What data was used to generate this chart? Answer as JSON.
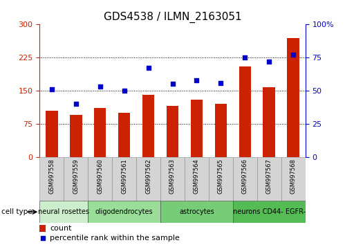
{
  "title": "GDS4538 / ILMN_2163051",
  "samples": [
    "GSM997558",
    "GSM997559",
    "GSM997560",
    "GSM997561",
    "GSM997562",
    "GSM997563",
    "GSM997564",
    "GSM997565",
    "GSM997566",
    "GSM997567",
    "GSM997568"
  ],
  "counts": [
    105,
    95,
    110,
    100,
    140,
    115,
    130,
    120,
    205,
    158,
    270
  ],
  "percentiles": [
    51,
    40,
    53,
    50,
    67,
    55,
    58,
    56,
    75,
    72,
    77
  ],
  "bar_color": "#cc2200",
  "dot_color": "#0000cc",
  "left_ylim": [
    0,
    300
  ],
  "right_ylim": [
    0,
    100
  ],
  "left_yticks": [
    0,
    75,
    150,
    225,
    300
  ],
  "right_yticks": [
    0,
    25,
    50,
    75,
    100
  ],
  "right_yticklabels": [
    "0",
    "25",
    "50",
    "75",
    "100%"
  ],
  "ct_data": [
    {
      "start": 0,
      "end": 2,
      "label": "neural rosettes",
      "color": "#cceecc"
    },
    {
      "start": 2,
      "end": 5,
      "label": "oligodendrocytes",
      "color": "#99dd99"
    },
    {
      "start": 5,
      "end": 8,
      "label": "astrocytes",
      "color": "#77cc77"
    },
    {
      "start": 8,
      "end": 11,
      "label": "neurons CD44- EGFR-",
      "color": "#55bb55"
    }
  ],
  "cell_type_label": "cell type",
  "legend_count_label": "count",
  "legend_percentile_label": "percentile rank within the sample",
  "bg_color": "#ffffff",
  "plot_bg_color": "#ffffff",
  "grid_color": "#000000",
  "tick_color_left": "#cc2200",
  "tick_color_right": "#0000cc",
  "title_fontsize": 11,
  "axis_fontsize": 8,
  "xtick_fontsize": 6,
  "legend_fontsize": 8,
  "ct_fontsize": 7
}
